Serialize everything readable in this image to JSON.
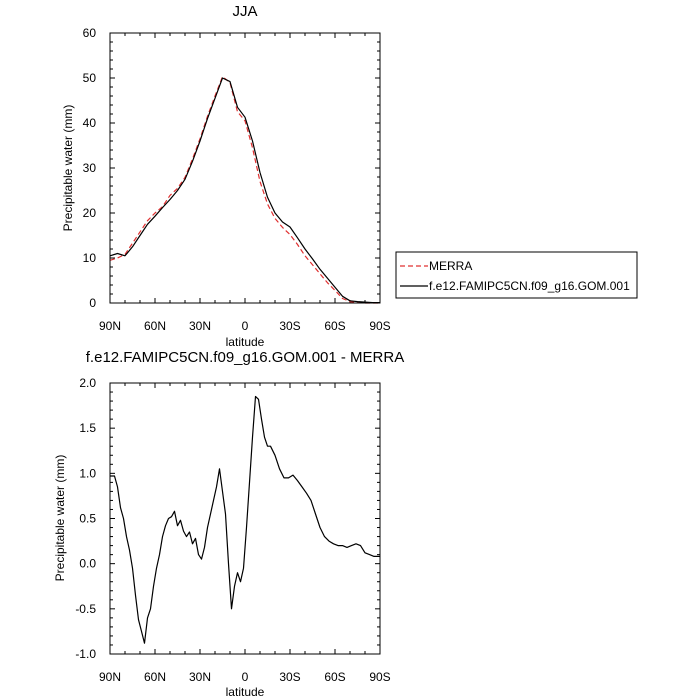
{
  "chart_data": [
    {
      "type": "line",
      "title": "JJA",
      "xlabel": "latitude",
      "ylabel": "Precipitable water (mm)",
      "xlim": [
        90,
        -90
      ],
      "ylim": [
        0,
        60
      ],
      "x_ticks": [
        90,
        60,
        30,
        0,
        -30,
        -60,
        -90
      ],
      "x_tick_labels": [
        "90N",
        "60N",
        "30N",
        "0",
        "30S",
        "60S",
        "90S"
      ],
      "y_ticks": [
        0,
        10,
        20,
        30,
        40,
        50,
        60
      ],
      "y_tick_labels": [
        "0",
        "10",
        "20",
        "30",
        "40",
        "50",
        "60"
      ],
      "legend_position": "right-outside",
      "series": [
        {
          "name": "MERRA",
          "color": "#e03030",
          "dash": "dashed",
          "x": [
            90,
            85,
            80,
            75,
            70,
            65,
            60,
            55,
            50,
            45,
            40,
            35,
            30,
            25,
            20,
            15,
            10,
            5,
            0,
            -5,
            -10,
            -15,
            -20,
            -25,
            -30,
            -35,
            -40,
            -45,
            -50,
            -55,
            -60,
            -65,
            -70,
            -75,
            -80,
            -85,
            -90
          ],
          "values": [
            9.5,
            10.0,
            10.8,
            13.3,
            15.8,
            18.3,
            20.0,
            21.4,
            23.9,
            25.5,
            27.9,
            32.0,
            36.5,
            41.5,
            46.0,
            50.3,
            49.0,
            42.5,
            40.5,
            34.5,
            27.0,
            22.0,
            18.8,
            16.8,
            15.2,
            13.0,
            10.5,
            8.5,
            6.5,
            4.5,
            2.8,
            1.0,
            0.3,
            0.1,
            0.0,
            0.0,
            0.0
          ]
        },
        {
          "name": "f.e12.FAMIPC5CN.f09_g16.GOM.001",
          "color": "#000000",
          "dash": "solid",
          "x": [
            90,
            85,
            80,
            75,
            70,
            65,
            60,
            55,
            50,
            45,
            40,
            35,
            30,
            25,
            20,
            15,
            10,
            5,
            0,
            -5,
            -10,
            -15,
            -20,
            -25,
            -30,
            -35,
            -40,
            -45,
            -50,
            -55,
            -60,
            -65,
            -70,
            -75,
            -80,
            -85,
            -90
          ],
          "values": [
            10.5,
            11.0,
            10.5,
            12.5,
            15.0,
            17.5,
            19.3,
            21.2,
            23.0,
            25.0,
            27.5,
            31.5,
            36.0,
            41.0,
            45.5,
            50.0,
            49.2,
            43.5,
            41.3,
            36.0,
            29.0,
            23.5,
            20.0,
            18.0,
            16.9,
            14.5,
            12.0,
            9.8,
            7.5,
            5.5,
            3.5,
            1.5,
            0.5,
            0.3,
            0.2,
            0.1,
            0.1
          ]
        }
      ]
    },
    {
      "type": "line",
      "title": "f.e12.FAMIPC5CN.f09_g16.GOM.001 - MERRA",
      "xlabel": "latitude",
      "ylabel": "Precipitable water (mm)",
      "xlim": [
        90,
        -90
      ],
      "ylim": [
        -1.0,
        2.0
      ],
      "x_ticks": [
        90,
        60,
        30,
        0,
        -30,
        -60,
        -90
      ],
      "x_tick_labels": [
        "90N",
        "60N",
        "30N",
        "0",
        "30S",
        "60S",
        "90S"
      ],
      "y_ticks": [
        -1.0,
        -0.5,
        0.0,
        0.5,
        1.0,
        1.5,
        2.0
      ],
      "y_tick_labels": [
        "-1.0",
        "-0.5",
        "0.0",
        "0.5",
        "1.0",
        "1.5",
        "2.0"
      ],
      "series": [
        {
          "color": "#000000",
          "dash": "solid",
          "x": [
            90,
            87,
            85,
            83,
            81,
            79,
            77,
            75,
            73,
            71,
            69,
            67,
            65,
            63,
            61,
            59,
            57,
            55,
            53,
            51,
            49,
            47,
            45,
            43,
            41,
            39,
            37,
            35,
            33,
            31,
            29,
            27,
            25,
            23,
            21,
            19,
            17,
            15,
            13,
            11,
            9,
            7,
            5,
            3,
            1,
            -1,
            -3,
            -5,
            -7,
            -9,
            -11,
            -13,
            -15,
            -17,
            -20,
            -23,
            -26,
            -29,
            -32,
            -35,
            -38,
            -41,
            -44,
            -47,
            -50,
            -53,
            -56,
            -59,
            -62,
            -65,
            -68,
            -71,
            -74,
            -77,
            -80,
            -83,
            -86,
            -88,
            -90
          ],
          "values": [
            0.97,
            0.97,
            0.85,
            0.62,
            0.5,
            0.3,
            0.15,
            -0.05,
            -0.35,
            -0.62,
            -0.75,
            -0.88,
            -0.6,
            -0.5,
            -0.25,
            -0.05,
            0.1,
            0.3,
            0.42,
            0.5,
            0.52,
            0.58,
            0.42,
            0.48,
            0.36,
            0.3,
            0.35,
            0.22,
            0.28,
            0.1,
            0.05,
            0.18,
            0.4,
            0.55,
            0.7,
            0.85,
            1.05,
            0.8,
            0.55,
            0.0,
            -0.5,
            -0.25,
            -0.1,
            -0.2,
            -0.05,
            0.4,
            0.9,
            1.4,
            1.85,
            1.82,
            1.6,
            1.4,
            1.3,
            1.3,
            1.2,
            1.05,
            0.95,
            0.95,
            0.98,
            0.92,
            0.85,
            0.78,
            0.7,
            0.55,
            0.4,
            0.3,
            0.25,
            0.22,
            0.2,
            0.2,
            0.18,
            0.2,
            0.22,
            0.2,
            0.12,
            0.1,
            0.08,
            0.08,
            0.08
          ]
        }
      ]
    }
  ]
}
